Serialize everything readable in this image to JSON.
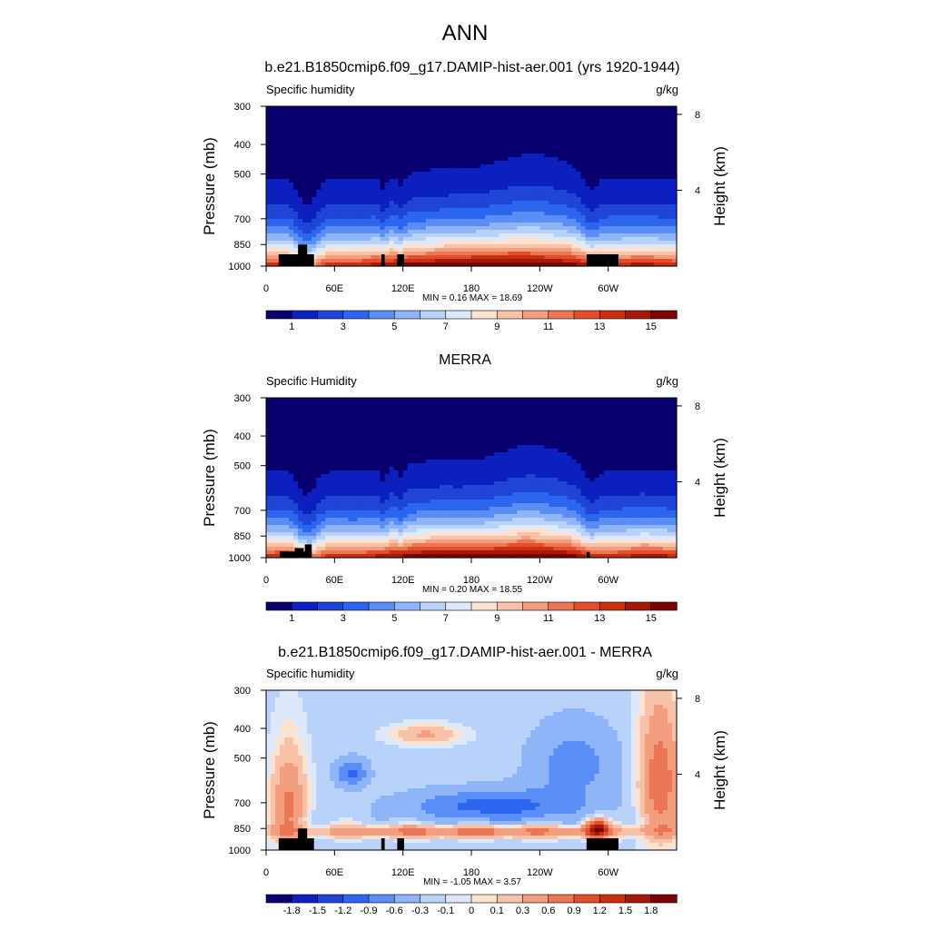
{
  "figure": {
    "title": "ANN"
  },
  "colors": {
    "absolute": [
      "#08006e",
      "#0c20c0",
      "#1f45d6",
      "#2d66ee",
      "#5a8df6",
      "#8fb5f8",
      "#b8d2f9",
      "#dde9fb",
      "#fde3cf",
      "#f8c2a8",
      "#f39e7f",
      "#ea7656",
      "#e24f2c",
      "#c8300e",
      "#a31a06",
      "#7a0403"
    ],
    "difference": [
      "#08006e",
      "#0c20c0",
      "#1f45d6",
      "#2d66ee",
      "#5a8df6",
      "#8fb5f8",
      "#b8d2f9",
      "#dde9fb",
      "#fde3cf",
      "#f8c2a8",
      "#f39e7f",
      "#ea7656",
      "#e24f2c",
      "#c8300e",
      "#a31a06",
      "#7a0403"
    ],
    "terrain": "#000000"
  },
  "chart_data": [
    {
      "type": "heatmap",
      "title": "b.e21.B1850cmip6.f09_g17.DAMIP-hist-aer.001 (yrs 1920-1944)",
      "left_label": "Specific humidity",
      "right_label": "g/kg",
      "ylabel": "Pressure (mb)",
      "ylabel_right": "Height (km)",
      "xticks": [
        "0",
        "60E",
        "120E",
        "180",
        "120W",
        "60W"
      ],
      "xtick_lon": [
        0,
        60,
        120,
        180,
        240,
        300
      ],
      "xlim": [
        0,
        360
      ],
      "yticks": [
        "300",
        "400",
        "500",
        "700",
        "850",
        "1000"
      ],
      "ytick_p": [
        300,
        400,
        500,
        700,
        850,
        1000
      ],
      "ylim": [
        300,
        1000
      ],
      "yticks_right": [
        "8",
        "4"
      ],
      "ytick_right_km": [
        8,
        4
      ],
      "stats": "MIN =   0.16  MAX =  18.69",
      "min": 0.16,
      "max": 18.69,
      "colorbar_levels": [
        1,
        2,
        3,
        4,
        5,
        6,
        7,
        8,
        9,
        10,
        11,
        12,
        13,
        14,
        15
      ],
      "colorbar_labels": [
        "1",
        "3",
        "5",
        "7",
        "9",
        "11",
        "13",
        "15"
      ],
      "surface_column_q": [
        {
          "lon": 0,
          "q": 14
        },
        {
          "lon": 20,
          "q": 14
        },
        {
          "lon": 30,
          "q": 12
        },
        {
          "lon": 40,
          "q": 11
        },
        {
          "lon": 55,
          "q": 14
        },
        {
          "lon": 80,
          "q": 14
        },
        {
          "lon": 100,
          "q": 15
        },
        {
          "lon": 130,
          "q": 16
        },
        {
          "lon": 180,
          "q": 17
        },
        {
          "lon": 220,
          "q": 17
        },
        {
          "lon": 265,
          "q": 16
        },
        {
          "lon": 280,
          "q": 15
        },
        {
          "lon": 300,
          "q": 14
        },
        {
          "lon": 330,
          "q": 15
        },
        {
          "lon": 360,
          "q": 14
        }
      ],
      "terrain": [
        {
          "lon": [
            11,
            42
          ],
          "p": 915
        },
        {
          "lon": [
            28,
            36
          ],
          "p": 850
        },
        {
          "lon": [
            101,
            104
          ],
          "p": 915
        },
        {
          "lon": [
            115,
            121
          ],
          "p": 915
        },
        {
          "lon": [
            281,
            309
          ],
          "p": 915
        }
      ]
    },
    {
      "type": "heatmap",
      "title": "MERRA",
      "left_label": "Specific Humidity",
      "right_label": "g/kg",
      "ylabel": "Pressure (mb)",
      "ylabel_right": "Height (km)",
      "xticks": [
        "0",
        "60E",
        "120E",
        "180",
        "120W",
        "60W"
      ],
      "xtick_lon": [
        0,
        60,
        120,
        180,
        240,
        300
      ],
      "xlim": [
        0,
        360
      ],
      "yticks": [
        "300",
        "400",
        "500",
        "700",
        "850",
        "1000"
      ],
      "ytick_p": [
        300,
        400,
        500,
        700,
        850,
        1000
      ],
      "ylim": [
        300,
        1000
      ],
      "yticks_right": [
        "8",
        "4"
      ],
      "ytick_right_km": [
        8,
        4
      ],
      "stats": "MIN =   0.20  MAX =  18.55",
      "min": 0.2,
      "max": 18.55,
      "colorbar_levels": [
        1,
        2,
        3,
        4,
        5,
        6,
        7,
        8,
        9,
        10,
        11,
        12,
        13,
        14,
        15
      ],
      "colorbar_labels": [
        "1",
        "3",
        "5",
        "7",
        "9",
        "11",
        "13",
        "15"
      ],
      "surface_column_q": [
        {
          "lon": 0,
          "q": 14
        },
        {
          "lon": 20,
          "q": 14
        },
        {
          "lon": 30,
          "q": 12
        },
        {
          "lon": 40,
          "q": 11
        },
        {
          "lon": 55,
          "q": 14
        },
        {
          "lon": 80,
          "q": 14
        },
        {
          "lon": 100,
          "q": 15
        },
        {
          "lon": 130,
          "q": 16
        },
        {
          "lon": 180,
          "q": 17
        },
        {
          "lon": 220,
          "q": 17
        },
        {
          "lon": 265,
          "q": 16
        },
        {
          "lon": 280,
          "q": 15
        },
        {
          "lon": 300,
          "q": 14
        },
        {
          "lon": 330,
          "q": 15
        },
        {
          "lon": 360,
          "q": 14
        }
      ],
      "terrain": [
        {
          "lon": [
            12,
            40
          ],
          "p": 955
        },
        {
          "lon": [
            25,
            33
          ],
          "p": 930
        },
        {
          "lon": [
            34,
            40
          ],
          "p": 905
        },
        {
          "lon": [
            281,
            284
          ],
          "p": 960
        }
      ]
    },
    {
      "type": "heatmap",
      "title": "b.e21.B1850cmip6.f09_g17.DAMIP-hist-aer.001 - MERRA",
      "left_label": "Specific humidity",
      "right_label": "g/kg",
      "ylabel": "Pressure (mb)",
      "ylabel_right": "Height (km)",
      "xticks": [
        "0",
        "60E",
        "120E",
        "180",
        "120W",
        "60W"
      ],
      "xtick_lon": [
        0,
        60,
        120,
        180,
        240,
        300
      ],
      "xlim": [
        0,
        360
      ],
      "yticks": [
        "300",
        "400",
        "500",
        "700",
        "850",
        "1000"
      ],
      "ytick_p": [
        300,
        400,
        500,
        700,
        850,
        1000
      ],
      "ylim": [
        300,
        1000
      ],
      "yticks_right": [
        "8",
        "4"
      ],
      "ytick_right_km": [
        8,
        4
      ],
      "stats": "MIN =  -1.05  MAX =   3.57",
      "min": -1.05,
      "max": 3.57,
      "colorbar_levels": [
        -1.8,
        -1.5,
        -1.2,
        -0.9,
        -0.6,
        -0.3,
        -0.1,
        0,
        0.1,
        0.3,
        0.6,
        0.9,
        1.2,
        1.5,
        1.8
      ],
      "colorbar_labels": [
        "-1.8",
        "-1.5",
        "-1.2",
        "-0.9",
        "-0.6",
        "-0.3",
        "-0.1",
        "0",
        "0.1",
        "0.3",
        "0.6",
        "0.9",
        "1.2",
        "1.5",
        "1.8"
      ],
      "terrain": [
        {
          "lon": [
            11,
            42
          ],
          "p": 915
        },
        {
          "lon": [
            28,
            36
          ],
          "p": 850
        },
        {
          "lon": [
            101,
            104
          ],
          "p": 915
        },
        {
          "lon": [
            115,
            121
          ],
          "p": 915
        },
        {
          "lon": [
            281,
            309
          ],
          "p": 915
        }
      ]
    }
  ]
}
